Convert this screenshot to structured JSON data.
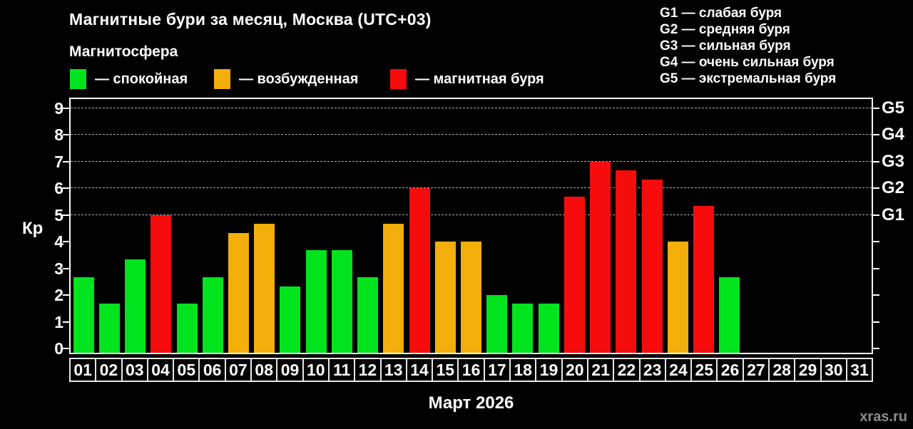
{
  "header": {
    "title": "Магнитные бури за месяц, Москва (UTC+03)",
    "subtitle": "Магнитосфера"
  },
  "legend": {
    "items": [
      {
        "name": "quiet",
        "color": "#00E41E",
        "label": "— спокойная"
      },
      {
        "name": "unsettled",
        "color": "#F3AE0B",
        "label": "— возбужденная"
      },
      {
        "name": "storm",
        "color": "#F60C0C",
        "label": "— магнитная буря"
      }
    ]
  },
  "g_legend": {
    "items": [
      "G1 — слабая буря",
      "G2 — средняя буря",
      "G3 — сильная буря",
      "G4 — очень сильная буря",
      "G5 — экстремальная буря"
    ]
  },
  "chart_data": {
    "type": "bar",
    "title": "Магнитные бури за месяц, Москва (UTC+03)",
    "xlabel": "Март 2026",
    "ylabel": "Кр",
    "ylim": [
      0,
      9
    ],
    "grid": "dashed horizontal lines at Kp 5-9 only",
    "legend_position": "top-left",
    "yticks": [
      0,
      1,
      2,
      3,
      4,
      5,
      6,
      7,
      8,
      9
    ],
    "gridlines_at": [
      5,
      6,
      7,
      8,
      9
    ],
    "right_axis": [
      {
        "value": 5,
        "label": "G1"
      },
      {
        "value": 6,
        "label": "G2"
      },
      {
        "value": 7,
        "label": "G3"
      },
      {
        "value": 8,
        "label": "G4"
      },
      {
        "value": 9,
        "label": "G5"
      }
    ],
    "categories": [
      "01",
      "02",
      "03",
      "04",
      "05",
      "06",
      "07",
      "08",
      "09",
      "10",
      "11",
      "12",
      "13",
      "14",
      "15",
      "16",
      "17",
      "18",
      "19",
      "20",
      "21",
      "22",
      "23",
      "24",
      "25",
      "26",
      "27",
      "28",
      "29",
      "30",
      "31"
    ],
    "values": [
      2.67,
      1.67,
      3.33,
      5.0,
      1.67,
      2.67,
      4.33,
      4.67,
      2.33,
      3.67,
      3.67,
      2.67,
      4.67,
      6.0,
      4.0,
      4.0,
      2.0,
      1.67,
      1.67,
      5.67,
      7.0,
      6.67,
      6.33,
      4.0,
      5.33,
      2.67,
      null,
      null,
      null,
      null,
      null
    ],
    "statuses": [
      "quiet",
      "quiet",
      "quiet",
      "storm",
      "quiet",
      "quiet",
      "unsettled",
      "unsettled",
      "quiet",
      "quiet",
      "quiet",
      "quiet",
      "unsettled",
      "storm",
      "unsettled",
      "unsettled",
      "quiet",
      "quiet",
      "quiet",
      "storm",
      "storm",
      "storm",
      "storm",
      "unsettled",
      "storm",
      "quiet",
      null,
      null,
      null,
      null,
      null
    ]
  },
  "footer": {
    "watermark": "xras.ru"
  },
  "colors": {
    "background": "#000000",
    "axis": "#ffffff",
    "gridline": "#b0b0b0",
    "watermark": "#8c8c8c"
  }
}
